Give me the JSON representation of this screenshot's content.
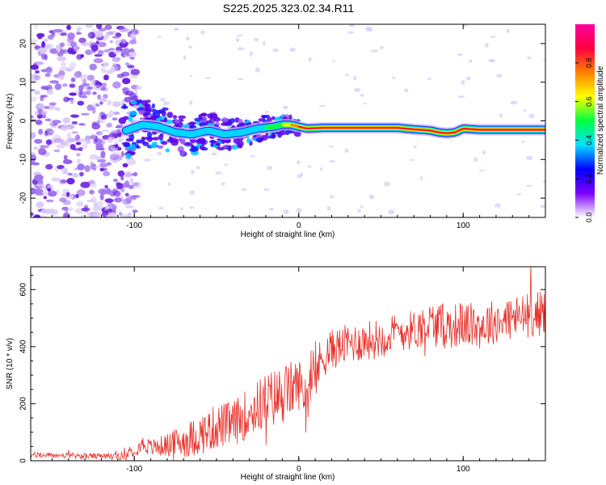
{
  "title": "S225.2025.323.02.34.R11",
  "colors": {
    "snr_line": "#e8302a",
    "ridge": "#e8302a",
    "frame": "#000000",
    "blob_core": "#6a1fe0",
    "blob_mid": "#a173f0",
    "blob_faint": "#d9c9f7"
  },
  "chart_data": [
    {
      "type": "heatmap",
      "name": "spectrogram",
      "title": "S225.2025.323.02.34.R11",
      "xlabel": "Height of straight line (km)",
      "ylabel": "Frequency (Hz)",
      "xlim": [
        -163,
        150
      ],
      "ylim": [
        -25,
        25
      ],
      "xticks": [
        -100,
        0,
        100
      ],
      "yticks": [
        -20,
        -10,
        0,
        10,
        20
      ],
      "colorbar": {
        "label": "Normalized spectral amplitude",
        "range": [
          0,
          1
        ],
        "ticks": [
          0.0,
          0.2,
          0.4,
          0.6,
          0.8
        ],
        "tick_labels": [
          "0.0",
          "0.2",
          "0.4",
          "0.6",
          "0.8"
        ],
        "gradient": [
          "#ffffff",
          "#7b00ff",
          "#0000ff",
          "#00e0ff",
          "#00ff40",
          "#ffff00",
          "#ff8000",
          "#ff0040",
          "#ff00a0"
        ]
      },
      "ridge": {
        "x": [
          -105,
          -95,
          -85,
          -75,
          -65,
          -55,
          -45,
          -35,
          -25,
          -15,
          -10,
          -5,
          0,
          5,
          15,
          30,
          45,
          60,
          70,
          80,
          85,
          90,
          95,
          100,
          110,
          130,
          150
        ],
        "freq": [
          -2.5,
          -1,
          -1.5,
          -3,
          -3.5,
          -2.5,
          -3.5,
          -3,
          -2,
          -1.5,
          -1,
          -1,
          -1.5,
          -2,
          -1.8,
          -1.8,
          -1.8,
          -1.8,
          -2.2,
          -2.5,
          -3,
          -3.2,
          -3,
          -2,
          -2.3,
          -2.3,
          -2.3
        ],
        "amplitude": [
          0.3,
          0.3,
          0.3,
          0.3,
          0.3,
          0.3,
          0.3,
          0.3,
          0.4,
          0.5,
          0.6,
          0.8,
          0.9,
          0.95,
          1,
          1,
          1,
          1,
          1,
          1,
          1,
          1,
          1,
          1,
          1,
          1,
          1
        ]
      },
      "noise_extent_x": [
        -163,
        -98
      ]
    },
    {
      "type": "line",
      "name": "snr",
      "xlabel": "Height of straight line (km)",
      "ylabel": "SNR (10 * v/v)",
      "xlim": [
        -163,
        150
      ],
      "ylim": [
        0,
        680
      ],
      "xticks": [
        -100,
        0,
        100
      ],
      "yticks": [
        0,
        200,
        400,
        600
      ],
      "series": [
        {
          "name": "SNR",
          "x": [
            -163,
            -140,
            -120,
            -105,
            -100,
            -95,
            -90,
            -80,
            -70,
            -60,
            -50,
            -40,
            -30,
            -20,
            -10,
            -5,
            0,
            5,
            10,
            15,
            20,
            30,
            40,
            50,
            60,
            70,
            80,
            90,
            100,
            110,
            120,
            130,
            140,
            150
          ],
          "values": [
            20,
            18,
            15,
            18,
            40,
            60,
            45,
            55,
            70,
            90,
            120,
            130,
            170,
            210,
            230,
            250,
            270,
            230,
            300,
            370,
            390,
            410,
            420,
            430,
            450,
            460,
            480,
            470,
            480,
            470,
            490,
            500,
            510,
            520
          ],
          "spread": [
            10,
            10,
            10,
            15,
            25,
            30,
            30,
            40,
            60,
            70,
            80,
            80,
            90,
            100,
            110,
            100,
            90,
            90,
            90,
            80,
            70,
            70,
            70,
            70,
            70,
            70,
            80,
            80,
            80,
            80,
            80,
            80,
            80,
            80
          ]
        }
      ]
    }
  ]
}
